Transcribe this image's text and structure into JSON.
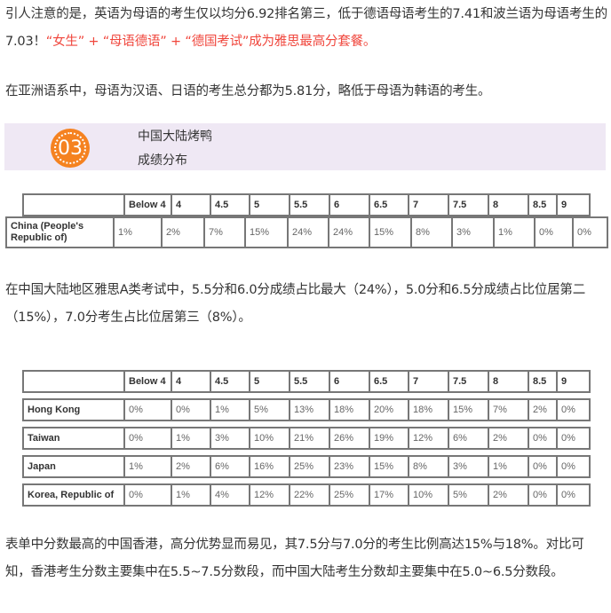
{
  "para1": {
    "text": "引人注意的是，英语为母语的考生仅以均分6.92排名第三，低于德语母语考生的7.41和波兰语为母语考生的7.03！",
    "highlight": "“女生” + “母语德语” + “德国考试”成为雅思最高分套餐。"
  },
  "para2": "在亚洲语系中，母语为汉语、日语的考生总分都为5.81分，略低于母语为韩语的考生。",
  "section": {
    "number": "03",
    "title_line1": "中国大陆烤鸭",
    "title_line2": "成绩分布",
    "badge_color": "#f58220",
    "banner_color": "#efe8f4"
  },
  "table1": {
    "headers": [
      "",
      "Below 4",
      "4",
      "4.5",
      "5",
      "5.5",
      "6",
      "6.5",
      "7",
      "7.5",
      "8",
      "8.5",
      "9"
    ],
    "rows": [
      {
        "label": "China (People's Republic of)",
        "values": [
          "1%",
          "2%",
          "7%",
          "15%",
          "24%",
          "24%",
          "15%",
          "8%",
          "3%",
          "1%",
          "0%",
          "0%"
        ]
      }
    ]
  },
  "para3": "在中国大陆地区雅思A类考试中，5.5分和6.0分成绩占比最大（24%），5.0分和6.5分成绩占比位居第二（15%），7.0分考生占比位居第三（8%）。",
  "table2": {
    "headers": [
      "",
      "Below 4",
      "4",
      "4.5",
      "5",
      "5.5",
      "6",
      "6.5",
      "7",
      "7.5",
      "8",
      "8.5",
      "9"
    ],
    "rows": [
      {
        "label": "Hong Kong",
        "values": [
          "0%",
          "0%",
          "1%",
          "5%",
          "13%",
          "18%",
          "20%",
          "18%",
          "15%",
          "7%",
          "2%",
          "0%"
        ]
      },
      {
        "label": "Taiwan",
        "values": [
          "0%",
          "1%",
          "3%",
          "10%",
          "21%",
          "26%",
          "19%",
          "12%",
          "6%",
          "2%",
          "0%",
          "0%"
        ]
      },
      {
        "label": "Japan",
        "values": [
          "1%",
          "2%",
          "6%",
          "16%",
          "25%",
          "23%",
          "15%",
          "8%",
          "3%",
          "1%",
          "0%",
          "0%"
        ]
      },
      {
        "label": "Korea, Republic of",
        "values": [
          "0%",
          "1%",
          "4%",
          "12%",
          "22%",
          "25%",
          "17%",
          "10%",
          "5%",
          "2%",
          "0%",
          "0%"
        ]
      }
    ]
  },
  "para4": "表单中分数最高的中国香港，高分优势显而易见，其7.5分与7.0分的考生比例高达15%与18%。对比可知，香港考生分数主要集中在5.5~7.5分数段，而中国大陆考生分数却主要集中在5.0~6.5分数段。"
}
